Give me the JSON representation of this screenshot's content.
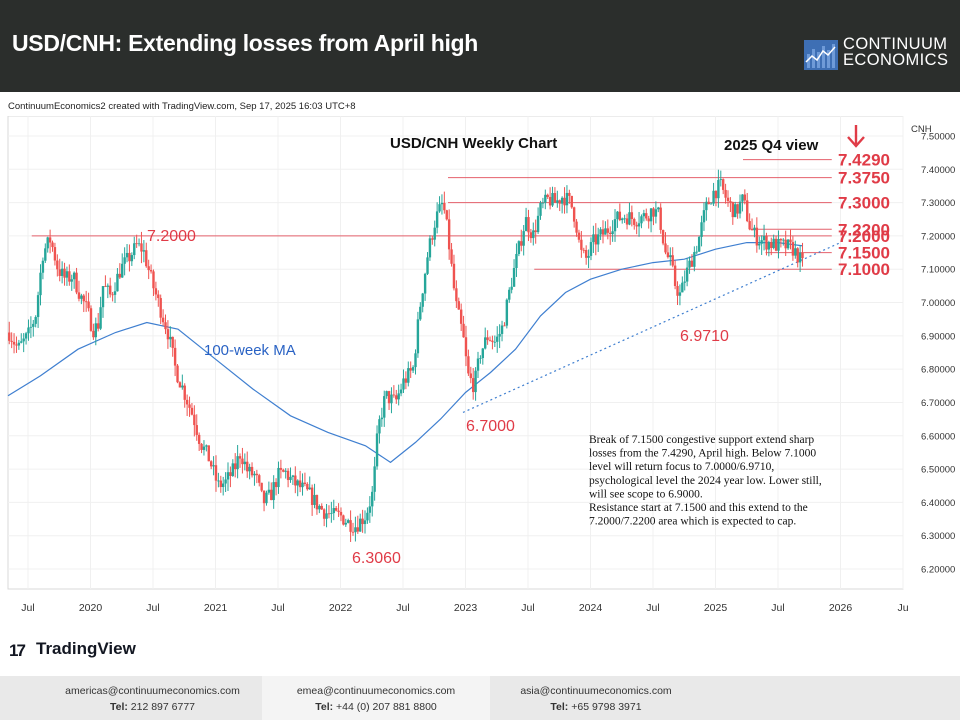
{
  "header": {
    "title": "USD/CNH: Extending losses from April high",
    "logo_line1": "CONTINUUM",
    "logo_line2": "ECONOMICS"
  },
  "credit": "ContinuumEconomics2 created with TradingView.com, Sep 17, 2025 16:03 UTC+8",
  "tradingview_label": "TradingView",
  "footer": {
    "americas": {
      "email": "americas@continuumeconomics.com",
      "tel_label": "Tel:",
      "tel": "212 897 6777"
    },
    "emea": {
      "email": "emea@continuumeconomics.com",
      "tel_label": "Tel:",
      "tel": "+44 (0) 207 881 8800"
    },
    "asia": {
      "email": "asia@continuumeconomics.com",
      "tel_label": "Tel:",
      "tel": "+65 9798 3971"
    }
  },
  "colors": {
    "up": "#26a69a",
    "down": "#ef5350",
    "level_line": "#e4606b",
    "label_red": "#e03b47",
    "ma_line": "#3f7fd0",
    "ma_label": "#2962c4",
    "trend_line": "#3f7fd0"
  },
  "chart_data": {
    "type": "candlestick",
    "title": "USD/CNH Weekly Chart",
    "annotation_view": "2025 Q4 view",
    "currency_label": "CNH",
    "ylim": [
      6.14,
      7.56
    ],
    "y_ticks": [
      "7.50000",
      "7.40000",
      "7.30000",
      "7.20000",
      "7.10000",
      "7.00000",
      "6.90000",
      "6.80000",
      "6.70000",
      "6.60000",
      "6.50000",
      "6.40000",
      "6.30000",
      "6.20000"
    ],
    "x_ticks": [
      "Jul",
      "2020",
      "Jul",
      "2021",
      "Jul",
      "2022",
      "Jul",
      "2023",
      "Jul",
      "2024",
      "Jul",
      "2025",
      "Jul",
      "2026",
      "Ju"
    ],
    "x_tick_years": [
      2019.5,
      2020,
      2020.5,
      2021,
      2021.5,
      2022,
      2022.5,
      2023,
      2023.5,
      2024,
      2024.5,
      2025,
      2025.5,
      2026,
      2026.5
    ],
    "xlim": [
      2019.34,
      2026.5
    ],
    "ohlc_path": [
      [
        2019.35,
        6.91
      ],
      [
        2019.42,
        6.86
      ],
      [
        2019.5,
        6.9
      ],
      [
        2019.56,
        6.96
      ],
      [
        2019.62,
        7.15
      ],
      [
        2019.68,
        7.19
      ],
      [
        2019.74,
        7.1
      ],
      [
        2019.8,
        7.07
      ],
      [
        2019.86,
        7.08
      ],
      [
        2019.92,
        7.02
      ],
      [
        2019.97,
        6.98
      ],
      [
        2020.02,
        6.92
      ],
      [
        2020.06,
        6.93
      ],
      [
        2020.1,
        7.05
      ],
      [
        2020.16,
        7.02
      ],
      [
        2020.24,
        7.1
      ],
      [
        2020.3,
        7.13
      ],
      [
        2020.37,
        7.17
      ],
      [
        2020.42,
        7.16
      ],
      [
        2020.5,
        7.05
      ],
      [
        2020.56,
        6.98
      ],
      [
        2020.62,
        6.91
      ],
      [
        2020.68,
        6.8
      ],
      [
        2020.76,
        6.72
      ],
      [
        2020.82,
        6.66
      ],
      [
        2020.88,
        6.58
      ],
      [
        2020.95,
        6.53
      ],
      [
        2021.02,
        6.45
      ],
      [
        2021.08,
        6.46
      ],
      [
        2021.15,
        6.5
      ],
      [
        2021.2,
        6.55
      ],
      [
        2021.26,
        6.49
      ],
      [
        2021.32,
        6.48
      ],
      [
        2021.38,
        6.4
      ],
      [
        2021.44,
        6.42
      ],
      [
        2021.5,
        6.48
      ],
      [
        2021.56,
        6.49
      ],
      [
        2021.62,
        6.46
      ],
      [
        2021.7,
        6.44
      ],
      [
        2021.76,
        6.42
      ],
      [
        2021.82,
        6.39
      ],
      [
        2021.88,
        6.37
      ],
      [
        2021.94,
        6.36
      ],
      [
        2022.0,
        6.36
      ],
      [
        2022.06,
        6.34
      ],
      [
        2022.12,
        6.33
      ],
      [
        2022.2,
        6.36
      ],
      [
        2022.26,
        6.43
      ],
      [
        2022.3,
        6.62
      ],
      [
        2022.36,
        6.72
      ],
      [
        2022.44,
        6.7
      ],
      [
        2022.5,
        6.76
      ],
      [
        2022.58,
        6.8
      ],
      [
        2022.64,
        7.0
      ],
      [
        2022.7,
        7.15
      ],
      [
        2022.76,
        7.25
      ],
      [
        2022.82,
        7.3
      ],
      [
        2022.86,
        7.2
      ],
      [
        2022.92,
        7.0
      ],
      [
        2022.98,
        6.9
      ],
      [
        2023.02,
        6.78
      ],
      [
        2023.07,
        6.75
      ],
      [
        2023.12,
        6.85
      ],
      [
        2023.18,
        6.9
      ],
      [
        2023.24,
        6.88
      ],
      [
        2023.3,
        6.93
      ],
      [
        2023.36,
        7.05
      ],
      [
        2023.42,
        7.15
      ],
      [
        2023.48,
        7.25
      ],
      [
        2023.54,
        7.2
      ],
      [
        2023.6,
        7.28
      ],
      [
        2023.66,
        7.31
      ],
      [
        2023.72,
        7.3
      ],
      [
        2023.78,
        7.32
      ],
      [
        2023.84,
        7.3
      ],
      [
        2023.88,
        7.25
      ],
      [
        2023.92,
        7.15
      ],
      [
        2023.97,
        7.13
      ],
      [
        2024.02,
        7.18
      ],
      [
        2024.08,
        7.2
      ],
      [
        2024.14,
        7.22
      ],
      [
        2024.2,
        7.25
      ],
      [
        2024.28,
        7.26
      ],
      [
        2024.36,
        7.25
      ],
      [
        2024.44,
        7.26
      ],
      [
        2024.5,
        7.28
      ],
      [
        2024.55,
        7.26
      ],
      [
        2024.6,
        7.15
      ],
      [
        2024.64,
        7.12
      ],
      [
        2024.68,
        7.05
      ],
      [
        2024.72,
        7.02
      ],
      [
        2024.76,
        7.08
      ],
      [
        2024.8,
        7.12
      ],
      [
        2024.86,
        7.18
      ],
      [
        2024.92,
        7.28
      ],
      [
        2024.98,
        7.33
      ],
      [
        2025.04,
        7.35
      ],
      [
        2025.1,
        7.3
      ],
      [
        2025.16,
        7.27
      ],
      [
        2025.22,
        7.31
      ],
      [
        2025.28,
        7.22
      ],
      [
        2025.34,
        7.19
      ],
      [
        2025.42,
        7.18
      ],
      [
        2025.5,
        7.17
      ],
      [
        2025.56,
        7.17
      ],
      [
        2025.62,
        7.16
      ],
      [
        2025.66,
        7.14
      ],
      [
        2025.7,
        7.11
      ]
    ],
    "ma_path": [
      [
        2019.34,
        6.72
      ],
      [
        2019.6,
        6.78
      ],
      [
        2019.9,
        6.86
      ],
      [
        2020.2,
        6.91
      ],
      [
        2020.45,
        6.94
      ],
      [
        2020.7,
        6.92
      ],
      [
        2021.0,
        6.83
      ],
      [
        2021.3,
        6.74
      ],
      [
        2021.6,
        6.66
      ],
      [
        2021.9,
        6.61
      ],
      [
        2022.2,
        6.57
      ],
      [
        2022.4,
        6.52
      ],
      [
        2022.6,
        6.58
      ],
      [
        2022.8,
        6.65
      ],
      [
        2023.0,
        6.73
      ],
      [
        2023.2,
        6.79
      ],
      [
        2023.4,
        6.86
      ],
      [
        2023.6,
        6.96
      ],
      [
        2023.8,
        7.03
      ],
      [
        2024.0,
        7.07
      ],
      [
        2024.25,
        7.1
      ],
      [
        2024.5,
        7.12
      ],
      [
        2024.75,
        7.13
      ],
      [
        2025.0,
        7.16
      ],
      [
        2025.25,
        7.18
      ],
      [
        2025.5,
        7.18
      ],
      [
        2025.7,
        7.17
      ]
    ],
    "trendline": {
      "from": [
        2022.98,
        6.67
      ],
      "to": [
        2026.0,
        7.18
      ]
    },
    "levels": [
      {
        "value": 7.429,
        "label": "7.4290",
        "x_start": 2025.22
      },
      {
        "value": 7.375,
        "label": "7.3750",
        "x_start": 2022.86
      },
      {
        "value": 7.3,
        "label": "7.3000",
        "x_start": 2022.86
      },
      {
        "value": 7.22,
        "label": "7.2200",
        "x_start": 2025.28
      },
      {
        "value": 7.2,
        "label": "7.2000",
        "x_start": 2019.53
      },
      {
        "value": 7.15,
        "label": "7.1500",
        "x_start": 2025.4
      },
      {
        "value": 7.1,
        "label": "7.1000",
        "x_start": 2023.55
      }
    ],
    "point_labels": [
      {
        "label": "7.2000",
        "value": 7.2
      },
      {
        "label": "6.9710",
        "value": 6.971
      },
      {
        "label": "6.7000",
        "value": 6.7
      },
      {
        "label": "6.3060",
        "value": 6.306
      }
    ],
    "ma_label": "100-week MA",
    "commentary": [
      "Break of 7.1500 congestive support extend sharp",
      "losses from the 7.4290, April high. Below 7.1000",
      "level will return focus to 7.0000/6.9710,",
      "psychological level the 2024 year low. Lower still,",
      "will see scope to 6.9000.",
      "Resistance start at 7.1500 and this extend to the",
      "7.2000/7.2200 area which is expected to cap."
    ]
  }
}
